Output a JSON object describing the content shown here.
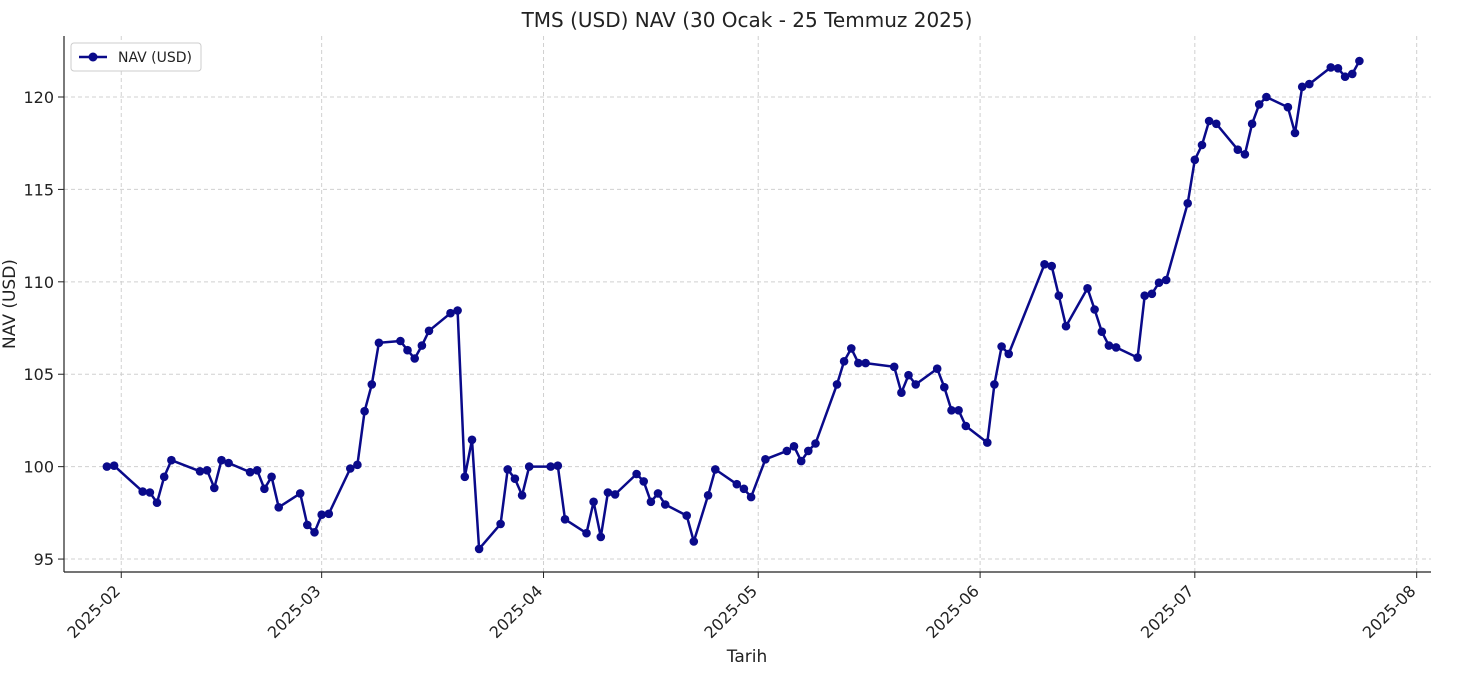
{
  "chart_data": {
    "type": "line",
    "title": "TMS (USD) NAV (30 Ocak - 25 Temmuz 2025)",
    "xlabel": "Tarih",
    "ylabel": "NAV (USD)",
    "legend": {
      "placement": "top-left",
      "entries": [
        "NAV (USD)"
      ]
    },
    "grid": true,
    "xlim": [
      "2025-01-24",
      "2025-08-03"
    ],
    "ylim": [
      94.3,
      123.3
    ],
    "x_ticks": [
      "2025-02",
      "2025-03",
      "2025-04",
      "2025-05",
      "2025-06",
      "2025-07",
      "2025-08"
    ],
    "y_ticks": [
      95,
      100,
      105,
      110,
      115,
      120
    ],
    "series": [
      {
        "name": "NAV (USD)",
        "color": "#0a0a8a",
        "marker": "circle",
        "points": [
          [
            "2025-01-30",
            100.0
          ],
          [
            "2025-01-31",
            100.05
          ],
          [
            "2025-02-04",
            98.65
          ],
          [
            "2025-02-05",
            98.6
          ],
          [
            "2025-02-06",
            98.05
          ],
          [
            "2025-02-07",
            99.45
          ],
          [
            "2025-02-08",
            100.35
          ],
          [
            "2025-02-12",
            99.75
          ],
          [
            "2025-02-13",
            99.8
          ],
          [
            "2025-02-14",
            98.85
          ],
          [
            "2025-02-15",
            100.35
          ],
          [
            "2025-02-16",
            100.2
          ],
          [
            "2025-02-19",
            99.7
          ],
          [
            "2025-02-20",
            99.8
          ],
          [
            "2025-02-21",
            98.8
          ],
          [
            "2025-02-22",
            99.45
          ],
          [
            "2025-02-23",
            97.8
          ],
          [
            "2025-02-26",
            98.55
          ],
          [
            "2025-02-27",
            96.85
          ],
          [
            "2025-02-28",
            96.45
          ],
          [
            "2025-03-01",
            97.4
          ],
          [
            "2025-03-02",
            97.45
          ],
          [
            "2025-03-05",
            99.9
          ],
          [
            "2025-03-06",
            100.1
          ],
          [
            "2025-03-07",
            103.0
          ],
          [
            "2025-03-08",
            104.45
          ],
          [
            "2025-03-09",
            106.7
          ],
          [
            "2025-03-12",
            106.8
          ],
          [
            "2025-03-13",
            106.3
          ],
          [
            "2025-03-14",
            105.85
          ],
          [
            "2025-03-15",
            106.55
          ],
          [
            "2025-03-16",
            107.35
          ],
          [
            "2025-03-19",
            108.3
          ],
          [
            "2025-03-20",
            108.45
          ],
          [
            "2025-03-21",
            99.45
          ],
          [
            "2025-03-22",
            101.45
          ],
          [
            "2025-03-23",
            95.55
          ],
          [
            "2025-03-26",
            96.9
          ],
          [
            "2025-03-27",
            99.85
          ],
          [
            "2025-03-28",
            99.35
          ],
          [
            "2025-03-29",
            98.45
          ],
          [
            "2025-03-30",
            100.0
          ],
          [
            "2025-04-02",
            100.0
          ],
          [
            "2025-04-03",
            100.05
          ],
          [
            "2025-04-04",
            97.15
          ],
          [
            "2025-04-07",
            96.4
          ],
          [
            "2025-04-08",
            98.1
          ],
          [
            "2025-04-09",
            96.2
          ],
          [
            "2025-04-10",
            98.6
          ],
          [
            "2025-04-11",
            98.5
          ],
          [
            "2025-04-14",
            99.6
          ],
          [
            "2025-04-15",
            99.2
          ],
          [
            "2025-04-16",
            98.1
          ],
          [
            "2025-04-17",
            98.55
          ],
          [
            "2025-04-18",
            97.95
          ],
          [
            "2025-04-21",
            97.35
          ],
          [
            "2025-04-22",
            95.95
          ],
          [
            "2025-04-24",
            98.45
          ],
          [
            "2025-04-25",
            99.85
          ],
          [
            "2025-04-28",
            99.05
          ],
          [
            "2025-04-29",
            98.8
          ],
          [
            "2025-04-30",
            98.35
          ],
          [
            "2025-05-02",
            100.4
          ],
          [
            "2025-05-05",
            100.85
          ],
          [
            "2025-05-06",
            101.1
          ],
          [
            "2025-05-07",
            100.3
          ],
          [
            "2025-05-08",
            100.85
          ],
          [
            "2025-05-09",
            101.25
          ],
          [
            "2025-05-12",
            104.45
          ],
          [
            "2025-05-13",
            105.7
          ],
          [
            "2025-05-14",
            106.4
          ],
          [
            "2025-05-15",
            105.6
          ],
          [
            "2025-05-16",
            105.6
          ],
          [
            "2025-05-20",
            105.4
          ],
          [
            "2025-05-21",
            104.0
          ],
          [
            "2025-05-22",
            104.95
          ],
          [
            "2025-05-23",
            104.45
          ],
          [
            "2025-05-26",
            105.3
          ],
          [
            "2025-05-27",
            104.3
          ],
          [
            "2025-05-28",
            103.05
          ],
          [
            "2025-05-29",
            103.05
          ],
          [
            "2025-05-30",
            102.2
          ],
          [
            "2025-06-02",
            101.3
          ],
          [
            "2025-06-03",
            104.45
          ],
          [
            "2025-06-04",
            106.5
          ],
          [
            "2025-06-05",
            106.1
          ],
          [
            "2025-06-10",
            110.95
          ],
          [
            "2025-06-11",
            110.85
          ],
          [
            "2025-06-12",
            109.25
          ],
          [
            "2025-06-13",
            107.6
          ],
          [
            "2025-06-16",
            109.65
          ],
          [
            "2025-06-17",
            108.5
          ],
          [
            "2025-06-18",
            107.3
          ],
          [
            "2025-06-19",
            106.55
          ],
          [
            "2025-06-20",
            106.45
          ],
          [
            "2025-06-23",
            105.9
          ],
          [
            "2025-06-24",
            109.25
          ],
          [
            "2025-06-25",
            109.35
          ],
          [
            "2025-06-26",
            109.95
          ],
          [
            "2025-06-27",
            110.1
          ],
          [
            "2025-06-30",
            114.25
          ],
          [
            "2025-07-01",
            116.6
          ],
          [
            "2025-07-02",
            117.4
          ],
          [
            "2025-07-03",
            118.7
          ],
          [
            "2025-07-04",
            118.55
          ],
          [
            "2025-07-07",
            117.15
          ],
          [
            "2025-07-08",
            116.9
          ],
          [
            "2025-07-09",
            118.55
          ],
          [
            "2025-07-10",
            119.6
          ],
          [
            "2025-07-11",
            120.0
          ],
          [
            "2025-07-14",
            119.45
          ],
          [
            "2025-07-15",
            118.05
          ],
          [
            "2025-07-16",
            120.55
          ],
          [
            "2025-07-17",
            120.7
          ],
          [
            "2025-07-20",
            121.6
          ],
          [
            "2025-07-21",
            121.55
          ],
          [
            "2025-07-22",
            121.1
          ],
          [
            "2025-07-23",
            121.25
          ],
          [
            "2025-07-24",
            121.95
          ]
        ]
      }
    ]
  }
}
